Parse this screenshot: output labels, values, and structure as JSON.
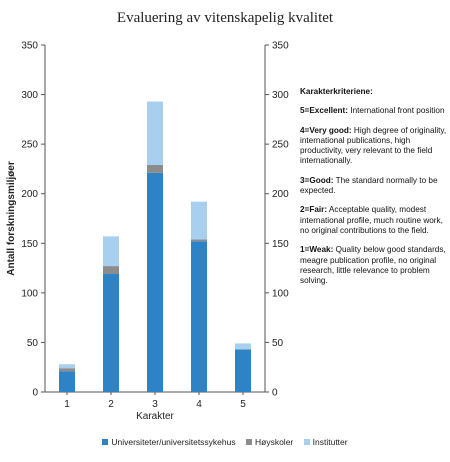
{
  "colors": {
    "universiteter": "#2E83C6",
    "hoyskoler": "#8C8C8C",
    "institutter": "#A9CFEF",
    "grid": "#444444"
  },
  "chart_data": {
    "type": "bar",
    "stacked": true,
    "title": "Evaluering av vitenskapelig kvalitet",
    "xlabel": "Karakter",
    "ylabel": "Antall forskningsmiljøer",
    "categories": [
      "1",
      "2",
      "3",
      "4",
      "5"
    ],
    "ylim": [
      0,
      350
    ],
    "yticks": [
      "0",
      "50",
      "100",
      "150",
      "200",
      "250",
      "300",
      "350"
    ],
    "secondary_yaxis": true,
    "grid": false,
    "legend_position": "bottom",
    "series": [
      {
        "name": "Universiteter/universitetssykehus",
        "values": [
          21,
          119,
          221,
          152,
          43
        ]
      },
      {
        "name": "Høyskoler",
        "values": [
          3,
          8,
          8,
          2,
          0
        ]
      },
      {
        "name": "Institutter",
        "values": [
          4,
          30,
          64,
          38,
          6
        ]
      }
    ]
  },
  "criteria": {
    "heading": "Karakterkriteriene:",
    "items": [
      {
        "label": "5=Excellent:",
        "text": " International front position"
      },
      {
        "label": "4=Very good:",
        "text": " High degree of originality, international publications, high productivity, very relevant to the field internationally."
      },
      {
        "label": "3=Good:",
        "text": " The standard normally to be expected."
      },
      {
        "label": "2=Fair:",
        "text": " Acceptable quality, modest international profile, much routine work, no original contributions to the field."
      },
      {
        "label": "1=Weak:",
        "text": " Quality below good standards, meagre publication profile, no original research, little relevance to problem solving."
      }
    ]
  }
}
